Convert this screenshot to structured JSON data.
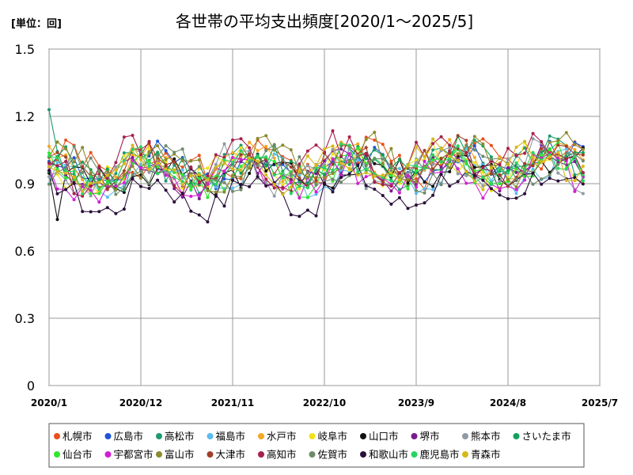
{
  "chart_data": {
    "type": "line",
    "title": "各世帯の平均支出頻度[2020/1～2025/5]",
    "unit_label": "[単位：回]",
    "ylim": [
      0,
      1.5
    ],
    "yticks": [
      0,
      0.3,
      0.6,
      0.9,
      1.2,
      1.5
    ],
    "ytick_labels": [
      "0",
      "0.3",
      "0.6",
      "0.9",
      "1.2",
      "1.5"
    ],
    "xlim": [
      "2020-01",
      "2025-07"
    ],
    "xticks": [
      "2020-01",
      "2020-12",
      "2021-11",
      "2022-10",
      "2023-09",
      "2024-08",
      "2025-07"
    ],
    "xtick_labels": [
      "2020/1",
      "2020/12",
      "2021/11",
      "2022/10",
      "2023/9",
      "2024/8",
      "2025/7"
    ],
    "grid": true,
    "legend_position": "bottom",
    "x_start": "2020-01",
    "x_end": "2025-05",
    "series": [
      {
        "name": "札幌市",
        "color": "#e8501c",
        "base": 0.97,
        "amp": 0.07,
        "phase": 0.3,
        "seed": 1
      },
      {
        "name": "広島市",
        "color": "#1f55d6",
        "base": 0.96,
        "amp": 0.06,
        "phase": 1.1,
        "seed": 2
      },
      {
        "name": "高松市",
        "color": "#1f9a70",
        "base": 0.95,
        "amp": 0.07,
        "phase": 2.0,
        "seed": 3
      },
      {
        "name": "福島市",
        "color": "#5bbcf0",
        "base": 0.92,
        "amp": 0.05,
        "phase": 0.7,
        "seed": 4
      },
      {
        "name": "水戸市",
        "color": "#f5a623",
        "base": 0.96,
        "amp": 0.06,
        "phase": 1.6,
        "seed": 5
      },
      {
        "name": "岐阜市",
        "color": "#f2e11a",
        "base": 0.95,
        "amp": 0.06,
        "phase": 2.4,
        "seed": 6
      },
      {
        "name": "山口市",
        "color": "#111111",
        "base": 0.93,
        "amp": 0.05,
        "phase": 0.2,
        "seed": 7
      },
      {
        "name": "堺市",
        "color": "#7a1a8c",
        "base": 0.93,
        "amp": 0.06,
        "phase": 1.9,
        "seed": 8
      },
      {
        "name": "熊本市",
        "color": "#8f9aa3",
        "base": 0.94,
        "amp": 0.07,
        "phase": 2.8,
        "seed": 9
      },
      {
        "name": "さいたま市",
        "color": "#12a05a",
        "base": 0.96,
        "amp": 0.06,
        "phase": 0.9,
        "seed": 10
      },
      {
        "name": "仙台市",
        "color": "#2ee62e",
        "base": 0.93,
        "amp": 0.06,
        "phase": 1.3,
        "seed": 11
      },
      {
        "name": "宇都宮市",
        "color": "#d21fd2",
        "base": 0.9,
        "amp": 0.06,
        "phase": 2.2,
        "seed": 12
      },
      {
        "name": "富山市",
        "color": "#8a8a2e",
        "base": 0.97,
        "amp": 0.08,
        "phase": 0.5,
        "seed": 13
      },
      {
        "name": "大津市",
        "color": "#a0402a",
        "base": 0.96,
        "amp": 0.07,
        "phase": 1.7,
        "seed": 14
      },
      {
        "name": "高知市",
        "color": "#a8204a",
        "base": 0.98,
        "amp": 0.08,
        "phase": 2.6,
        "seed": 15
      },
      {
        "name": "佐賀市",
        "color": "#6f8a6a",
        "base": 0.94,
        "amp": 0.07,
        "phase": 0.1,
        "seed": 16
      },
      {
        "name": "和歌山市",
        "color": "#2a0f3a",
        "base": 0.84,
        "amp": 0.07,
        "phase": 1.4,
        "seed": 17
      },
      {
        "name": "鹿児島市",
        "color": "#29d45e",
        "base": 0.94,
        "amp": 0.06,
        "phase": 2.1,
        "seed": 18
      },
      {
        "name": "青森市",
        "color": "#d6b81a",
        "base": 0.95,
        "amp": 0.06,
        "phase": 2.9,
        "seed": 19
      }
    ]
  }
}
